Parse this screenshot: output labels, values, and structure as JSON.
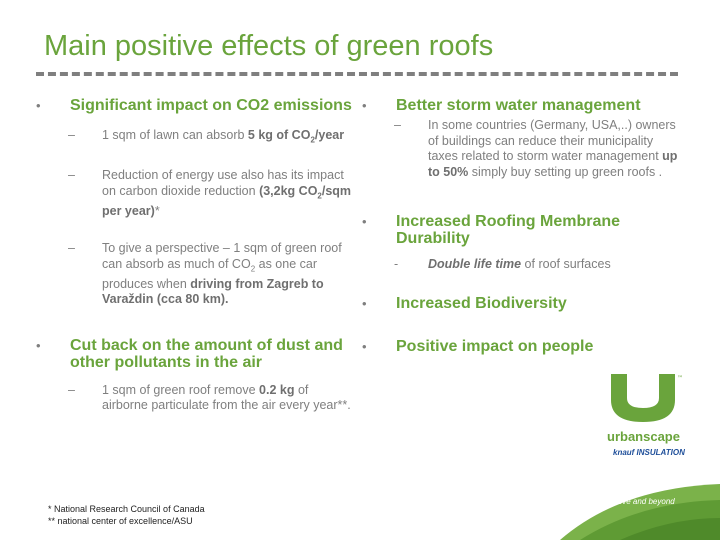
{
  "title": "Main positive effects of green roofs",
  "left": {
    "item1": {
      "bullet": "•",
      "heading": "Significant impact on CO2 emissions",
      "sub1": {
        "dash": "–",
        "text_a": "1 sqm of lawn can absorb ",
        "bold": "5 kg of CO",
        "sub": "2",
        "text_b": "/year"
      },
      "sub2": {
        "dash": "–",
        "text_a": "Reduction of energy use also has its impact on carbon dioxide reduction ",
        "bold": "(3,2kg CO",
        "sub": "2",
        "bold_b": "/sqm per year)",
        "text_b": "*"
      },
      "sub3": {
        "dash": "–",
        "text_a": "To give a perspective – 1 sqm of green roof can absorb as much of CO",
        "sub": "2",
        "text_b": " as one car produces when ",
        "bold": "driving from Zagreb to Varaždin (cca 80 km)."
      }
    },
    "item2": {
      "bullet": "•",
      "heading": "Cut back on the amount of dust and other pollutants in the air",
      "sub1": {
        "dash": "–",
        "text_a": "1 sqm of green roof remove ",
        "bold": "0.2 kg",
        "text_b": " of airborne particulate from the air every year**."
      }
    }
  },
  "right": {
    "item1": {
      "bullet": "•",
      "heading": "Better storm water management",
      "sub1": {
        "dash": "–",
        "text_a": "In some countries (Germany, USA,..) owners of buildings can reduce their municipality taxes related to storm water management ",
        "bold": "up to 50%",
        "text_b": " simply buy setting up green roofs ."
      }
    },
    "item2": {
      "bullet": "•",
      "heading": "Increased Roofing Membrane Durability",
      "sub1": {
        "dash": "-",
        "bold": "Double life time",
        "text_b": " of roof surfaces"
      }
    },
    "item3": {
      "bullet": "•",
      "heading": "Increased Biodiversity"
    },
    "item4": {
      "bullet": "•",
      "heading": "Positive impact on people"
    }
  },
  "footnotes": {
    "line1": "* National Research Council of Canada",
    "line2": "** national center of excellence/ASU"
  },
  "logos": {
    "urbanscape": "urbanscape",
    "knauf": "knauf INSULATION",
    "tagline": "Above and beyond"
  },
  "colors": {
    "accent_green": "#6aa43c",
    "text_gray": "#7f7f7f",
    "dash_gray": "#7f7f7f"
  }
}
